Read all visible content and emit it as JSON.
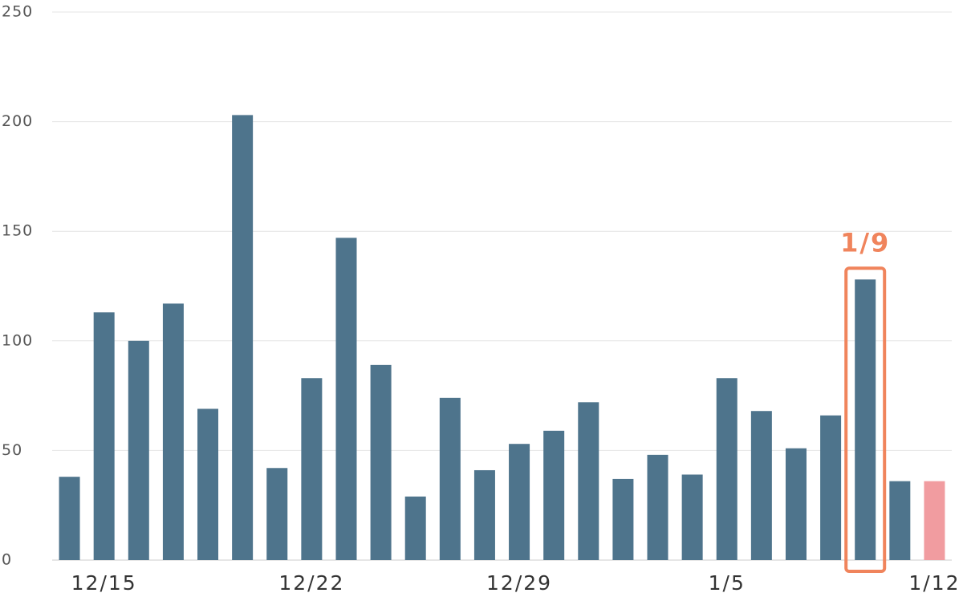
{
  "chart_data": {
    "type": "bar",
    "categories": [
      null,
      "12/15",
      null,
      null,
      null,
      null,
      null,
      "12/22",
      null,
      null,
      null,
      null,
      null,
      "12/29",
      null,
      null,
      null,
      null,
      null,
      "1/5",
      null,
      null,
      null,
      null,
      null,
      "1/12"
    ],
    "values": [
      38,
      113,
      100,
      117,
      69,
      203,
      42,
      83,
      147,
      89,
      29,
      74,
      41,
      53,
      59,
      72,
      37,
      48,
      39,
      83,
      68,
      51,
      66,
      128,
      36,
      36
    ],
    "colors": [
      "#4e748c",
      "#4e748c",
      "#4e748c",
      "#4e748c",
      "#4e748c",
      "#4e748c",
      "#4e748c",
      "#4e748c",
      "#4e748c",
      "#4e748c",
      "#4e748c",
      "#4e748c",
      "#4e748c",
      "#4e748c",
      "#4e748c",
      "#4e748c",
      "#4e748c",
      "#4e748c",
      "#4e748c",
      "#4e748c",
      "#4e748c",
      "#4e748c",
      "#4e748c",
      "#4e748c",
      "#4e748c",
      "#f19ca0"
    ],
    "ylim": [
      0,
      250
    ],
    "yticks": [
      0,
      50,
      100,
      150,
      200,
      250
    ],
    "grid": true,
    "annotation": {
      "text": "1/9",
      "bar": 23,
      "color": "#f0845c"
    }
  }
}
